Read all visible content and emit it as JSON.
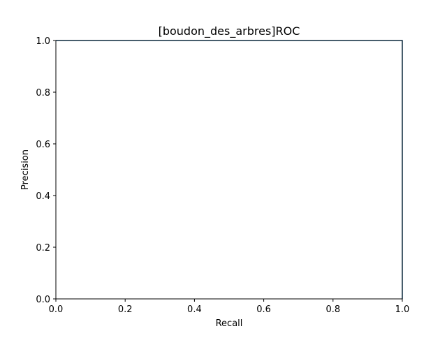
{
  "chart_data": {
    "type": "line",
    "title": "[boudon_des_arbres]ROC",
    "xlabel": "Recall",
    "ylabel": "Precision",
    "xlim": [
      0.0,
      1.0
    ],
    "ylim": [
      0.0,
      1.0
    ],
    "xticks": [
      "0.0",
      "0.2",
      "0.4",
      "0.6",
      "0.8",
      "1.0"
    ],
    "yticks": [
      "0.0",
      "0.2",
      "0.4",
      "0.6",
      "0.8",
      "1.0"
    ],
    "grid": false,
    "series": [
      {
        "color": "#1f77b4",
        "x": [
          0.0,
          1.0,
          1.0
        ],
        "y": [
          1.0,
          1.0,
          0.0
        ]
      }
    ]
  }
}
